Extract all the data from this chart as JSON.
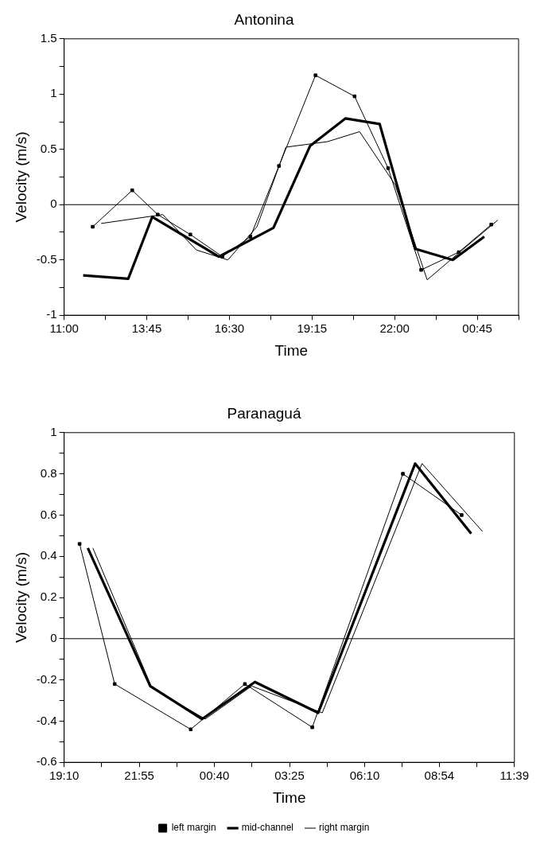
{
  "chart_data": [
    {
      "type": "line",
      "title": "Antonina",
      "xlabel": "Time",
      "ylabel": "Velocity (m/s)",
      "xlim": [
        "--01-01T11:00",
        "--01-02T02:07:30"
      ],
      "ylim": [
        -1,
        1.5
      ],
      "xticks": [
        {
          "value": "--01-01T11:00",
          "label": "11:00"
        },
        {
          "value": "--01-01T12:22:30",
          "label": null
        },
        {
          "value": "--01-01T13:45",
          "label": "13:45"
        },
        {
          "value": "--01-01T15:07:30",
          "label": null
        },
        {
          "value": "--01-01T16:30",
          "label": "16:30"
        },
        {
          "value": "--01-01T17:52:30",
          "label": null
        },
        {
          "value": "--01-01T19:15",
          "label": "19:15"
        },
        {
          "value": "--01-01T20:37:30",
          "label": null
        },
        {
          "value": "--01-01T22:00",
          "label": "22:00"
        },
        {
          "value": "--01-01T23:22:30",
          "label": null
        },
        {
          "value": "--01-02T00:45",
          "label": "00:45"
        },
        {
          "value": "--01-02T02:07:30",
          "label": null
        }
      ],
      "yticks": [
        -1,
        {
          "value": -0.75,
          "label": null
        },
        -0.5,
        {
          "value": -0.25,
          "label": null
        },
        0,
        {
          "value": 0.25,
          "label": null
        },
        0.5,
        {
          "value": 0.75,
          "label": null
        },
        1,
        {
          "value": 1.25,
          "label": null
        },
        1.5
      ],
      "grid": false,
      "legend": false,
      "ref_lines": [
        {
          "axis": "y",
          "value": 0,
          "color": "#000000"
        }
      ],
      "series": [
        {
          "color": "#000000",
          "marker": "square",
          "x": [
            "--01-01T11:57",
            "--01-01T13:16",
            "--01-01T14:07",
            "--01-01T15:12",
            "--01-01T16:16",
            "--01-01T17:12",
            "--01-01T18:09",
            "--01-01T19:22",
            "--01-01T20:40",
            "--01-01T21:47",
            "--01-01T22:53",
            "--01-02T00:08",
            "--01-02T01:13"
          ],
          "values": [
            -0.2,
            0.13,
            -0.09,
            -0.27,
            -0.47,
            -0.29,
            0.35,
            1.17,
            0.98,
            0.33,
            -0.59,
            -0.43,
            -0.18
          ]
        },
        {
          "color": "#000000",
          "marker": "none",
          "x": [
            "--01-01T11:38",
            "--01-01T13:08",
            "--01-01T13:56",
            "--01-01T16:09",
            "--01-01T17:58",
            "--01-01T19:11",
            "--01-01T20:22",
            "--01-01T21:30",
            "--01-01T22:41",
            "--01-01T23:56",
            "--01-02T00:59"
          ],
          "values": [
            -0.64,
            -0.67,
            -0.11,
            -0.47,
            -0.21,
            0.53,
            0.78,
            0.73,
            -0.4,
            -0.5,
            -0.29
          ]
        },
        {
          "color": "#000000",
          "marker": "none",
          "x": [
            "--01-01T12:14",
            "--01-01T14:17",
            "--01-01T15:24",
            "--01-01T16:27",
            "--01-01T17:25",
            "--01-01T18:23",
            "--01-01T19:46",
            "--01-01T20:50",
            "--01-01T22:01",
            "--01-01T23:05",
            "--01-02T00:02",
            "--01-02T01:26"
          ],
          "values": [
            -0.17,
            -0.09,
            -0.41,
            -0.5,
            -0.2,
            0.52,
            0.57,
            0.66,
            0.18,
            -0.68,
            -0.46,
            -0.14
          ]
        }
      ]
    },
    {
      "type": "line",
      "title": "Paranaguá",
      "xlabel": "Time",
      "ylabel": "Velocity (m/s)",
      "xlim": [
        "--01-01T19:10",
        "--01-02T11:39"
      ],
      "ylim": [
        -0.6,
        1
      ],
      "xticks": [
        {
          "value": "--01-01T19:10",
          "label": "19:10"
        },
        {
          "value": "--01-01T20:32:30",
          "label": null
        },
        {
          "value": "--01-01T21:55",
          "label": "21:55"
        },
        {
          "value": "--01-01T23:17:30",
          "label": null
        },
        {
          "value": "--01-02T00:40",
          "label": "00:40"
        },
        {
          "value": "--01-02T02:02:30",
          "label": null
        },
        {
          "value": "--01-02T03:25",
          "label": "03:25"
        },
        {
          "value": "--01-02T04:47:30",
          "label": null
        },
        {
          "value": "--01-02T06:10",
          "label": "06:10"
        },
        {
          "value": "--01-02T07:32:30",
          "label": null
        },
        {
          "value": "--01-02T08:54",
          "label": "08:54"
        },
        {
          "value": "--01-02T10:16:30",
          "label": null
        },
        {
          "value": "--01-02T11:39",
          "label": "11:39"
        }
      ],
      "yticks": [
        -0.6,
        {
          "value": -0.5,
          "label": null
        },
        -0.4,
        {
          "value": -0.3,
          "label": null
        },
        -0.2,
        {
          "value": -0.1,
          "label": null
        },
        0,
        {
          "value": 0.1,
          "label": null
        },
        0.2,
        {
          "value": 0.3,
          "label": null
        },
        0.4,
        {
          "value": 0.5,
          "label": null
        },
        0.6,
        {
          "value": 0.7,
          "label": null
        },
        0.8,
        {
          "value": 0.9,
          "label": null
        },
        1
      ],
      "grid": false,
      "legend": "bottom",
      "ref_lines": [
        {
          "axis": "y",
          "value": 0,
          "color": "#000000"
        }
      ],
      "series": [
        {
          "name": "left margin",
          "color": "#000000",
          "marker": "square",
          "x": [
            "--01-01T19:44",
            "--01-01T21:01",
            "--01-01T23:48",
            "--01-02T01:47",
            "--01-02T04:15",
            "--01-02T07:34",
            "--01-02T09:43"
          ],
          "values": [
            0.46,
            -0.22,
            -0.44,
            -0.22,
            -0.43,
            0.8,
            0.6
          ]
        },
        {
          "name": "mid-channel",
          "color": "#000000",
          "marker": "none",
          "x": [
            "--01-01T20:02",
            "--01-01T22:19",
            "--01-02T00:13",
            "--01-02T02:09",
            "--01-02T04:28",
            "--01-02T08:01",
            "--01-02T10:04"
          ],
          "values": [
            0.44,
            -0.23,
            -0.39,
            -0.21,
            -0.36,
            0.85,
            0.51
          ]
        },
        {
          "name": "right margin",
          "color": "#000000",
          "marker": "none",
          "x": [
            "--01-01T20:13",
            "--01-01T22:23",
            "--01-02T00:20",
            "--01-02T02:02",
            "--01-02T04:37",
            "--01-02T08:16",
            "--01-02T10:29"
          ],
          "values": [
            0.44,
            -0.24,
            -0.39,
            -0.23,
            -0.36,
            0.85,
            0.52
          ]
        }
      ]
    }
  ]
}
